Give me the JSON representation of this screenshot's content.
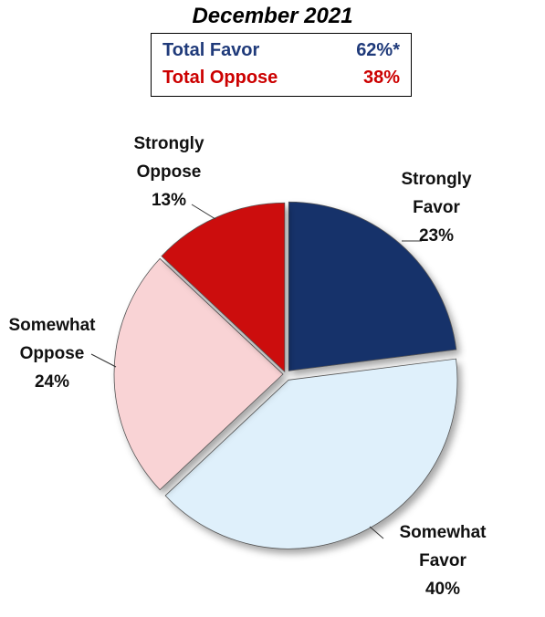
{
  "summary": {
    "title": "December 2021",
    "rows": [
      {
        "label": "Total Favor",
        "value": "62%*",
        "color": "#1f3a7a"
      },
      {
        "label": "Total Oppose",
        "value": "38%",
        "color": "#cc0000"
      }
    ]
  },
  "chart_data": {
    "type": "pie",
    "title": "December 2021",
    "slices": [
      {
        "label": "Strongly Favor",
        "value": 23,
        "display": "23%",
        "color": "#14306b"
      },
      {
        "label": "Somewhat Favor",
        "value": 40,
        "display": "40%",
        "color": "#dff0fb"
      },
      {
        "label": "Somewhat Oppose",
        "value": 24,
        "display": "24%",
        "color": "#f9d3d5"
      },
      {
        "label": "Strongly Oppose",
        "value": 13,
        "display": "13%",
        "color": "#cc0a0a"
      }
    ]
  }
}
